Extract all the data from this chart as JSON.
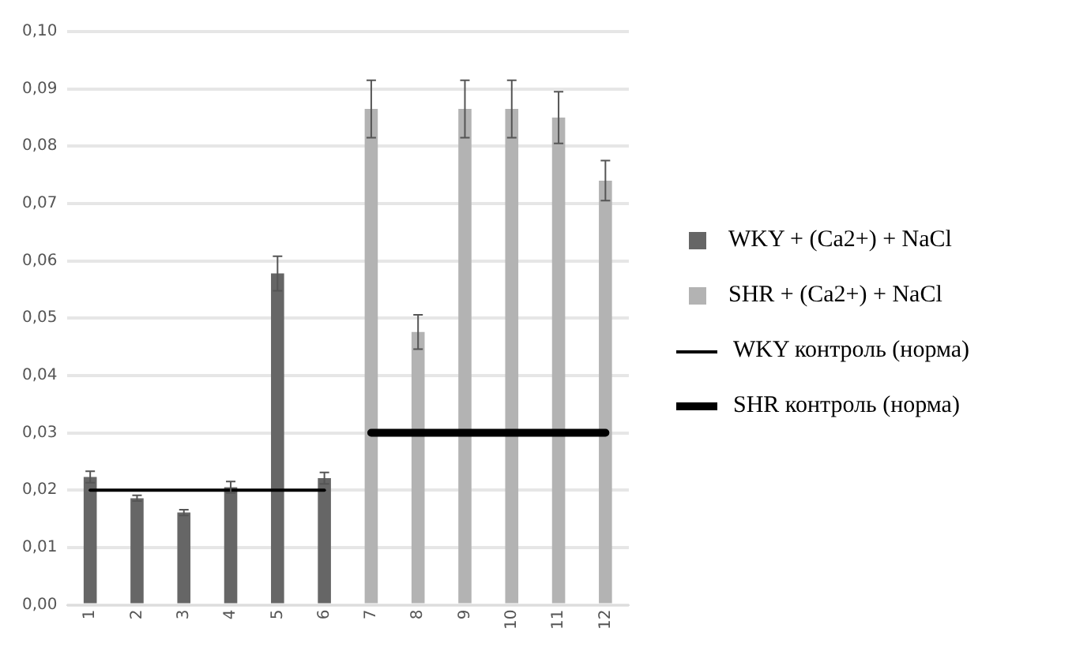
{
  "chart_data": {
    "type": "bar",
    "categories": [
      "1",
      "2",
      "3",
      "4",
      "5",
      "6",
      "7",
      "8",
      "9",
      "10",
      "11",
      "12"
    ],
    "series": [
      {
        "name": "WKY + (Ca2+) + NaCl",
        "color": "#666666",
        "values": [
          0.0223,
          0.0186,
          0.0161,
          0.0205,
          0.0578,
          0.0221,
          null,
          null,
          null,
          null,
          null,
          null
        ],
        "errors": [
          0.001,
          0.0005,
          0.0005,
          0.001,
          0.003,
          0.001,
          null,
          null,
          null,
          null,
          null,
          null
        ]
      },
      {
        "name": "SHR + (Ca2+) + NaCl",
        "color": "#b3b3b3",
        "values": [
          null,
          null,
          null,
          null,
          null,
          null,
          0.0865,
          0.0476,
          0.0865,
          0.0865,
          0.085,
          0.074
        ],
        "errors": [
          null,
          null,
          null,
          null,
          null,
          null,
          0.005,
          0.003,
          0.005,
          0.005,
          0.0045,
          0.0035
        ]
      },
      {
        "name": "WKY контроль (норма)",
        "type": "line",
        "color": "#000000",
        "values": [
          0.02,
          0.02,
          0.02,
          0.02,
          0.02,
          0.02,
          null,
          null,
          null,
          null,
          null,
          null
        ]
      },
      {
        "name": "SHR контроль (норма)",
        "type": "line",
        "color": "#000000",
        "values": [
          null,
          null,
          null,
          null,
          null,
          null,
          0.03,
          0.03,
          0.03,
          0.03,
          0.03,
          0.03
        ]
      }
    ],
    "ylim": [
      0,
      0.1
    ],
    "yticks": [
      {
        "value": 0,
        "label": "0,00"
      },
      {
        "value": 0.01,
        "label": "0,01"
      },
      {
        "value": 0.02,
        "label": "0,02"
      },
      {
        "value": 0.03,
        "label": "0,03"
      },
      {
        "value": 0.04,
        "label": "0,04"
      },
      {
        "value": 0.05,
        "label": "0,05"
      },
      {
        "value": 0.06,
        "label": "0,06"
      },
      {
        "value": 0.07,
        "label": "0,07"
      },
      {
        "value": 0.08,
        "label": "0,08"
      },
      {
        "value": 0.09,
        "label": "0,09"
      },
      {
        "value": 0.1,
        "label": "0,10"
      }
    ],
    "grid": "y",
    "legend": "right"
  }
}
